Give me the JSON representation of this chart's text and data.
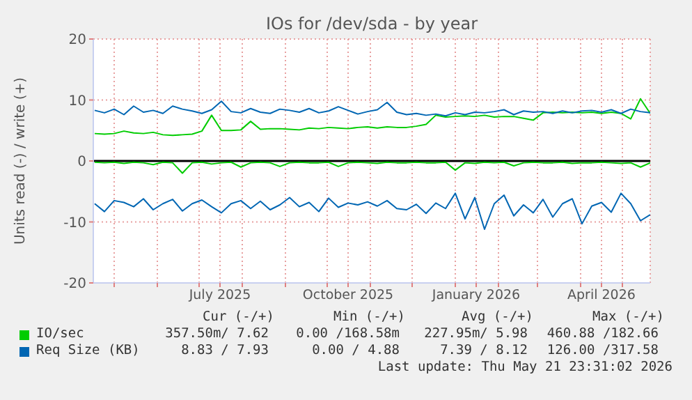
{
  "chart_data": {
    "type": "line",
    "title": "IOs for /dev/sda - by year",
    "ylabel": "Units read (-) / write (+)",
    "x": [
      "2025-04-17",
      "2025-04-24",
      "2025-05-01",
      "2025-05-08",
      "2025-05-15",
      "2025-05-22",
      "2025-05-29",
      "2025-06-05",
      "2025-06-12",
      "2025-06-19",
      "2025-06-26",
      "2025-07-03",
      "2025-07-10",
      "2025-07-17",
      "2025-07-24",
      "2025-07-31",
      "2025-08-07",
      "2025-08-14",
      "2025-08-21",
      "2025-08-28",
      "2025-09-04",
      "2025-09-11",
      "2025-09-18",
      "2025-09-25",
      "2025-10-02",
      "2025-10-09",
      "2025-10-16",
      "2025-10-23",
      "2025-10-30",
      "2025-11-06",
      "2025-11-13",
      "2025-11-20",
      "2025-11-27",
      "2025-12-04",
      "2025-12-11",
      "2025-12-18",
      "2025-12-25",
      "2026-01-01",
      "2026-01-08",
      "2026-01-15",
      "2026-01-22",
      "2026-01-29",
      "2026-02-05",
      "2026-02-12",
      "2026-02-19",
      "2026-02-26",
      "2026-03-05",
      "2026-03-12",
      "2026-03-19",
      "2026-03-26",
      "2026-04-02",
      "2026-04-09",
      "2026-04-16",
      "2026-04-23",
      "2026-04-30",
      "2026-05-07",
      "2026-05-14",
      "2026-05-21"
    ],
    "series": [
      {
        "name": "IO/sec",
        "color": "#00cc00",
        "values": [
          4.5,
          4.4,
          4.5,
          4.9,
          4.6,
          4.5,
          4.7,
          4.3,
          4.2,
          4.3,
          4.4,
          4.9,
          7.5,
          5.0,
          5.0,
          5.1,
          6.5,
          5.2,
          5.3,
          5.3,
          5.2,
          5.1,
          5.4,
          5.3,
          5.5,
          5.4,
          5.3,
          5.5,
          5.6,
          5.4,
          5.6,
          5.5,
          5.5,
          5.7,
          6.0,
          7.5,
          7.2,
          7.3,
          7.4,
          7.3,
          7.5,
          7.2,
          7.3,
          7.3,
          7.0,
          6.7,
          7.9,
          8.0,
          7.9,
          8.0,
          7.9,
          8.0,
          7.8,
          8.0,
          7.8,
          6.9,
          10.2,
          7.8
        ]
      },
      {
        "color": "#00cc00",
        "values": [
          -0.2,
          -0.3,
          -0.2,
          -0.4,
          -0.2,
          -0.3,
          -0.6,
          -0.2,
          -0.3,
          -2.0,
          -0.3,
          -0.2,
          -0.5,
          -0.3,
          -0.2,
          -1.0,
          -0.3,
          -0.2,
          -0.3,
          -0.9,
          -0.3,
          -0.2,
          -0.3,
          -0.3,
          -0.2,
          -0.9,
          -0.3,
          -0.2,
          -0.3,
          -0.4,
          -0.2,
          -0.3,
          -0.3,
          -0.2,
          -0.3,
          -0.3,
          -0.2,
          -1.5,
          -0.3,
          -0.4,
          -0.2,
          -0.3,
          -0.2,
          -0.8,
          -0.3,
          -0.2,
          -0.3,
          -0.3,
          -0.2,
          -0.4,
          -0.3,
          -0.3,
          -0.2,
          -0.3,
          -0.4,
          -0.3,
          -1.0,
          -0.3
        ]
      },
      {
        "name": "Req Size (KB)",
        "color": "#0066b3",
        "values": [
          8.3,
          7.9,
          8.5,
          7.6,
          9.0,
          8.0,
          8.3,
          7.8,
          9.0,
          8.5,
          8.2,
          7.8,
          8.4,
          9.8,
          8.1,
          7.9,
          8.6,
          8.0,
          7.8,
          8.5,
          8.3,
          8.0,
          8.6,
          7.9,
          8.2,
          8.9,
          8.3,
          7.7,
          8.1,
          8.4,
          9.6,
          8.0,
          7.6,
          7.8,
          7.5,
          7.7,
          7.4,
          7.9,
          7.6,
          8.0,
          7.9,
          8.1,
          8.4,
          7.6,
          8.2,
          8.0,
          8.1,
          7.8,
          8.2,
          7.9,
          8.2,
          8.3,
          8.0,
          8.4,
          7.8,
          8.5,
          8.1,
          7.9
        ]
      },
      {
        "color": "#0066b3",
        "values": [
          -7.0,
          -8.3,
          -6.5,
          -6.8,
          -7.5,
          -6.2,
          -8.0,
          -7.0,
          -6.3,
          -8.2,
          -7.0,
          -6.4,
          -7.5,
          -8.5,
          -7.0,
          -6.5,
          -7.8,
          -6.6,
          -8.0,
          -7.2,
          -6.0,
          -7.5,
          -6.8,
          -8.3,
          -6.1,
          -7.6,
          -6.9,
          -7.2,
          -6.7,
          -7.4,
          -6.5,
          -7.8,
          -8.0,
          -7.1,
          -8.6,
          -6.9,
          -7.8,
          -5.3,
          -9.5,
          -6.0,
          -11.2,
          -7.0,
          -5.6,
          -9.0,
          -7.2,
          -8.5,
          -6.3,
          -9.2,
          -7.0,
          -6.2,
          -10.3,
          -7.4,
          -6.8,
          -8.4,
          -5.3,
          -7.0,
          -9.8,
          -8.8
        ]
      }
    ],
    "xlim": [
      "2025-04-16",
      "2026-05-21"
    ],
    "xticks": [
      {
        "value": "2025-05-01",
        "label": null
      },
      {
        "value": "2025-06-01",
        "label": null
      },
      {
        "value": "2025-07-01",
        "label": null
      },
      {
        "value": "2025-07-16",
        "label": "July 2025"
      },
      {
        "value": "2025-08-01",
        "label": null
      },
      {
        "value": "2025-09-01",
        "label": null
      },
      {
        "value": "2025-10-01",
        "label": null
      },
      {
        "value": "2025-10-16",
        "label": "October 2025"
      },
      {
        "value": "2025-11-01",
        "label": null
      },
      {
        "value": "2025-12-01",
        "label": null
      },
      {
        "value": "2026-01-01",
        "label": null
      },
      {
        "value": "2026-01-16",
        "label": "January 2026"
      },
      {
        "value": "2026-02-01",
        "label": null
      },
      {
        "value": "2026-03-01",
        "label": null
      },
      {
        "value": "2026-04-01",
        "label": null
      },
      {
        "value": "2026-04-16",
        "label": "April 2026"
      },
      {
        "value": "2026-05-01",
        "label": null
      }
    ],
    "ylim": [
      -20,
      20
    ],
    "yticks": [
      -20,
      -10,
      0,
      10,
      20
    ],
    "ref_lines": [
      {
        "axis": "y",
        "value": 0,
        "color": "#000000"
      }
    ],
    "grid": true,
    "legend": "bottom",
    "marker": "none",
    "line_style": "solid",
    "annotations": [
      "Cur (-/+)",
      "Min (-/+)",
      "Avg (-/+)",
      "Max (-/+)",
      "357.50m/ 7.62",
      "0.00 /168.58m",
      "227.95m/ 5.98",
      "460.88 /182.66",
      "8.83 / 7.93",
      "0.00 / 4.88",
      "7.39 / 8.12",
      "126.00 /317.58",
      "Last update: Thu May 21 23:31:02 2026"
    ]
  }
}
